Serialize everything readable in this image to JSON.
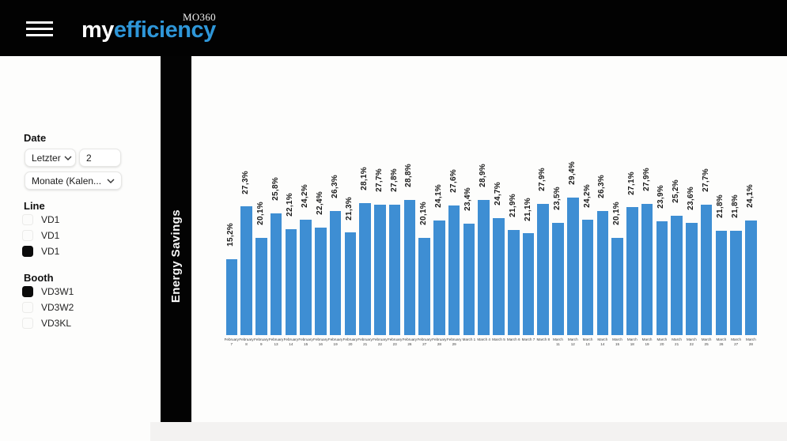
{
  "header": {
    "logo_prefix": "my",
    "logo_suffix": "efficiency",
    "badge": "MO360",
    "logo_accent_color": "#2e96d8",
    "background_color": "#020202"
  },
  "banner": {
    "title": "Energy Savings",
    "background_color": "#030303"
  },
  "sidebar": {
    "date_label": "Date",
    "date_range_type": "Letzter",
    "date_range_value": "2",
    "date_range_unit": "Monate (Kalen...",
    "line_label": "Line",
    "line_items": [
      {
        "label": "VD1",
        "checked": false
      },
      {
        "label": "VD1",
        "checked": false
      },
      {
        "label": "VD1",
        "checked": true
      }
    ],
    "booth_label": "Booth",
    "booth_items": [
      {
        "label": "VD3W1",
        "checked": true
      },
      {
        "label": "VD3W2",
        "checked": false
      },
      {
        "label": "VD3KL",
        "checked": false
      }
    ]
  },
  "chart_data": {
    "type": "bar",
    "title": "",
    "xlabel": "",
    "ylabel": "",
    "grid": false,
    "legend": false,
    "ylim": [
      0,
      30
    ],
    "bar_color": "#3e8ed3",
    "value_label_suffix": "%",
    "decimal_separator": ",",
    "categories": [
      "February 7",
      "February 8",
      "February 9",
      "February 13",
      "February 14",
      "February 15",
      "February 16",
      "February 19",
      "February 20",
      "February 21",
      "February 22",
      "February 23",
      "February 26",
      "February 27",
      "February 28",
      "February 29",
      "March 1",
      "March 4",
      "March 5",
      "March 6",
      "March 7",
      "March 8",
      "March 11",
      "March 12",
      "March 13",
      "March 14",
      "March 15",
      "March 18",
      "March 19",
      "March 20",
      "March 21",
      "March 22",
      "March 25",
      "March 26",
      "March 27",
      "March 28"
    ],
    "values": [
      15.2,
      27.3,
      20.1,
      25.8,
      22.1,
      24.2,
      22.4,
      26.3,
      21.3,
      28.1,
      27.7,
      27.8,
      28.8,
      20.1,
      24.1,
      27.6,
      23.4,
      28.9,
      24.7,
      21.9,
      21.1,
      27.9,
      23.5,
      29.4,
      24.2,
      26.3,
      20.1,
      27.1,
      27.9,
      23.9,
      25.2,
      23.6,
      27.7,
      21.8,
      21.8,
      24.1
    ]
  }
}
